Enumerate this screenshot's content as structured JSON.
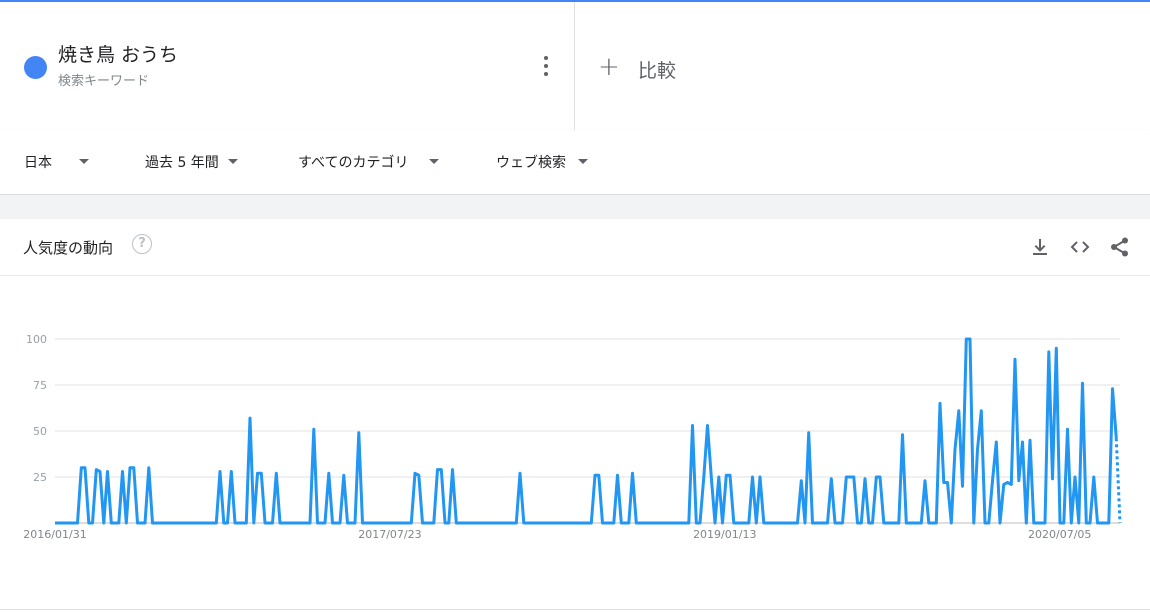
{
  "term": {
    "name": "焼き鳥 おうち",
    "subtitle": "検索キーワード",
    "color": "#4285f4"
  },
  "compare": {
    "label": "比較"
  },
  "filters": {
    "region": "日本",
    "period": "過去 5 年間",
    "category": "すべてのカテゴリ",
    "search_type": "ウェブ検索"
  },
  "card": {
    "title": "人気度の動向",
    "help_icon": "?",
    "tools": [
      "download-icon",
      "embed-code-icon",
      "share-icon"
    ]
  },
  "chart_data": {
    "type": "line",
    "title": "",
    "xlabel": "",
    "ylabel": "",
    "ylim": [
      0,
      100
    ],
    "yticks": [
      "100",
      "75",
      "50",
      "25"
    ],
    "xtick_labels": [
      "2016/01/31",
      "2017/07/23",
      "2019/01/13",
      "2020/07/05"
    ],
    "x_range": [
      "2016/01/31",
      "2021/01/17"
    ],
    "grid": true,
    "legend": "none",
    "line_color": "#2196f3",
    "last_segment_dotted": true,
    "series": [
      {
        "values": [
          0,
          0,
          0,
          0,
          0,
          0,
          0,
          30,
          30,
          0,
          0,
          29,
          28,
          0,
          28,
          0,
          0,
          0,
          28,
          0,
          30,
          30,
          0,
          0,
          0,
          30,
          0,
          0,
          0,
          0,
          0,
          0,
          0,
          0,
          0,
          0,
          0,
          0,
          0,
          0,
          0,
          0,
          0,
          0,
          28,
          0,
          0,
          28,
          0,
          0,
          0,
          0,
          57,
          0,
          27,
          27,
          0,
          0,
          0,
          27,
          0,
          0,
          0,
          0,
          0,
          0,
          0,
          0,
          0,
          51,
          0,
          0,
          0,
          27,
          0,
          0,
          0,
          26,
          0,
          0,
          0,
          49,
          0,
          0,
          0,
          0,
          0,
          0,
          0,
          0,
          0,
          0,
          0,
          0,
          0,
          0,
          27,
          26,
          0,
          0,
          0,
          0,
          29,
          29,
          0,
          0,
          29,
          0,
          0,
          0,
          0,
          0,
          0,
          0,
          0,
          0,
          0,
          0,
          0,
          0,
          0,
          0,
          0,
          0,
          27,
          0,
          0,
          0,
          0,
          0,
          0,
          0,
          0,
          0,
          0,
          0,
          0,
          0,
          0,
          0,
          0,
          0,
          0,
          0,
          26,
          26,
          0,
          0,
          0,
          0,
          26,
          0,
          0,
          0,
          27,
          0,
          0,
          0,
          0,
          0,
          0,
          0,
          0,
          0,
          0,
          0,
          0,
          0,
          0,
          0,
          53,
          0,
          0,
          25,
          53,
          25,
          0,
          25,
          0,
          26,
          26,
          0,
          0,
          0,
          0,
          0,
          25,
          0,
          25,
          0,
          0,
          0,
          0,
          0,
          0,
          0,
          0,
          0,
          0,
          23,
          0,
          49,
          0,
          0,
          0,
          0,
          0,
          24,
          0,
          0,
          0,
          25,
          25,
          25,
          0,
          0,
          24,
          0,
          0,
          25,
          25,
          0,
          0,
          0,
          0,
          0,
          48,
          0,
          0,
          0,
          0,
          0,
          23,
          0,
          0,
          0,
          65,
          22,
          22,
          0,
          40,
          61,
          20,
          100,
          100,
          0,
          40,
          61,
          0,
          0,
          23,
          44,
          0,
          21,
          22,
          21,
          89,
          23,
          44,
          0,
          45,
          0,
          0,
          0,
          0,
          93,
          24,
          95,
          0,
          0,
          51,
          0,
          25,
          0,
          76,
          0,
          0,
          25,
          0,
          0,
          0,
          0,
          73,
          46,
          0
        ]
      }
    ]
  }
}
